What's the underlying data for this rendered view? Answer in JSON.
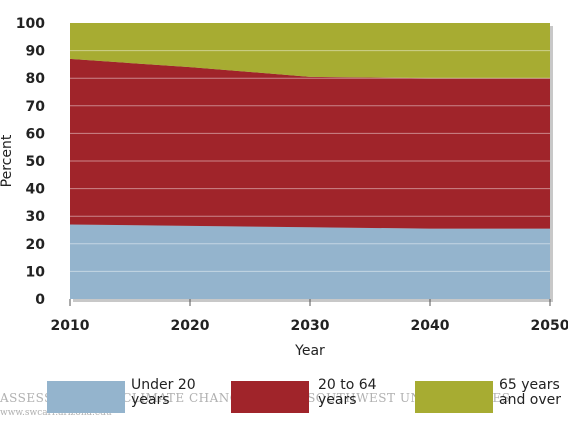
{
  "chart_data": {
    "type": "area",
    "stacked": true,
    "x": [
      2010,
      2020,
      2030,
      2040,
      2050
    ],
    "series": [
      {
        "name": "Under 20 years",
        "values": [
          27,
          26.5,
          26,
          25.5,
          25.5
        ],
        "color": "#94b4cd"
      },
      {
        "name": "20 to 64 years",
        "values": [
          60,
          57.5,
          54.5,
          54.5,
          54.5
        ],
        "color": "#a0242a"
      },
      {
        "name": "65 years and over",
        "values": [
          13,
          16,
          19.5,
          20,
          20
        ],
        "color": "#a7ac32"
      }
    ],
    "xlabel": "Year",
    "ylabel": "Percent",
    "ylim": [
      0,
      100
    ],
    "yticks": [
      0,
      10,
      20,
      30,
      40,
      50,
      60,
      70,
      80,
      90,
      100
    ],
    "xticks": [
      "2010",
      "2020",
      "2030",
      "2040",
      "2050"
    ],
    "grid": true,
    "legend_position": "bottom"
  },
  "legend": {
    "items": [
      {
        "label": "Under 20\nyears",
        "color": "#94b4cd"
      },
      {
        "label": "20 to 64\nyears",
        "color": "#a0242a"
      },
      {
        "label": "65 years\nand over",
        "color": "#a7ac32"
      }
    ]
  },
  "watermark": {
    "text": "ASSESSMENT OF CLIMATE CHANGE IN THE SOUTHWEST UNITED STATES",
    "url": "www.swcarr.arizona.edu"
  }
}
